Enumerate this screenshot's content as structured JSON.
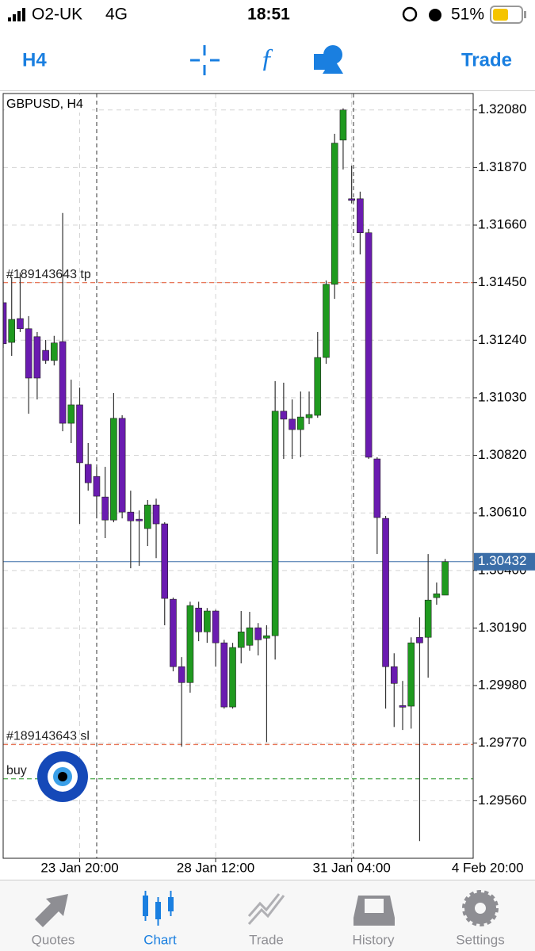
{
  "status_bar": {
    "carrier": "O2-UK",
    "network": "4G",
    "time": "18:51",
    "battery": "51%"
  },
  "toolbar": {
    "timeframe": "H4",
    "action": "Trade"
  },
  "chart_data": {
    "type": "candlestick",
    "title": "GBPUSD, H4",
    "up_color": "#1f9a1f",
    "down_color": "#6a1bb0",
    "open": [
      1.31377,
      1.31232,
      1.31319,
      1.31282,
      1.31253,
      1.31203,
      1.31166,
      1.31235,
      1.30937,
      1.31004,
      1.30787,
      1.30743,
      1.30668,
      1.30584,
      1.30955,
      1.30613,
      1.30587,
      1.30553,
      1.30639,
      1.3057,
      1.30295,
      1.30049,
      1.29991,
      1.30263,
      1.30176,
      1.30252,
      1.30136,
      1.29902,
      1.30119,
      1.30127,
      1.30191,
      1.30153,
      1.30162,
      1.30981,
      1.30952,
      1.30914,
      1.30957,
      1.30966,
      1.31177,
      1.31444,
      1.3197,
      1.31756,
      1.31756,
      1.31632,
      1.30807,
      1.3059,
      1.30049,
      1.29907,
      1.29905,
      1.30156,
      1.30156,
      1.30301,
      1.3031
    ],
    "high": [
      1.31458,
      1.31472,
      1.31487,
      1.31328,
      1.3127,
      1.31241,
      1.31256,
      1.31704,
      1.31096,
      1.31067,
      1.30865,
      1.30778,
      1.30778,
      1.31047,
      1.30966,
      1.30691,
      1.30619,
      1.30657,
      1.30662,
      1.30576,
      1.30301,
      1.30084,
      1.30286,
      1.30286,
      1.30263,
      1.30257,
      1.30147,
      1.30136,
      1.30252,
      1.30249,
      1.30208,
      1.302,
      1.31091,
      1.31085,
      1.31024,
      1.31053,
      1.31053,
      1.3127,
      1.31458,
      1.31993,
      1.32086,
      1.31877,
      1.31782,
      1.31646,
      1.30813,
      1.30599,
      1.30098,
      1.29997,
      1.30156,
      1.30229,
      1.3046,
      1.30356,
      1.30442
    ],
    "low": [
      1.31212,
      1.31183,
      1.3127,
      1.30972,
      1.31024,
      1.31154,
      1.31148,
      1.30908,
      1.30865,
      1.3057,
      1.30691,
      1.3059,
      1.30518,
      1.30576,
      1.3059,
      1.30408,
      1.30417,
      1.30489,
      1.30445,
      1.302,
      1.30032,
      1.29757,
      1.29954,
      1.30142,
      1.30136,
      1.30049,
      1.29896,
      1.29896,
      1.30061,
      1.30107,
      1.3009,
      1.29774,
      1.30075,
      1.30807,
      1.30807,
      1.30813,
      1.30934,
      1.30957,
      1.31154,
      1.31391,
      1.31863,
      1.31739,
      1.31553,
      1.30807,
      1.3046,
      1.29896,
      1.29829,
      1.29818,
      1.29823,
      1.29413,
      1.30009,
      1.30275,
      1.3031
    ],
    "close": [
      1.31227,
      1.31316,
      1.31282,
      1.31102,
      1.31102,
      1.31166,
      1.3123,
      1.30937,
      1.31004,
      1.30793,
      1.3072,
      1.30671,
      1.30584,
      1.30955,
      1.30613,
      1.30581,
      1.30581,
      1.30639,
      1.3057,
      1.30298,
      1.30049,
      1.29991,
      1.30272,
      1.30176,
      1.30252,
      1.30136,
      1.29902,
      1.30119,
      1.30176,
      1.30191,
      1.30147,
      1.30162,
      1.30981,
      1.30952,
      1.30914,
      1.3096,
      1.30969,
      1.31177,
      1.31444,
      1.31959,
      1.3208,
      1.3175,
      1.31632,
      1.30813,
      1.30593,
      1.30049,
      1.29988,
      1.29902,
      1.30136,
      1.30136,
      1.30292,
      1.30315,
      1.30432
    ],
    "xlim": [
      0,
      55.3
    ],
    "xticks": [
      {
        "value": 9,
        "label": "23 Jan 20:00"
      },
      {
        "value": 25,
        "label": "28 Jan 12:00"
      },
      {
        "value": 41,
        "label": "31 Jan 04:00"
      },
      {
        "value": 57,
        "label": "4 Feb 20:00"
      }
    ],
    "ylim": [
      1.2935,
      1.3214
    ],
    "yticks": [
      {
        "value": 1.3208,
        "label": "1.32080"
      },
      {
        "value": 1.3187,
        "label": "1.31870"
      },
      {
        "value": 1.3166,
        "label": "1.31660"
      },
      {
        "value": 1.3145,
        "label": "1.31450"
      },
      {
        "value": 1.3124,
        "label": "1.31240"
      },
      {
        "value": 1.3103,
        "label": "1.31030"
      },
      {
        "value": 1.3082,
        "label": "1.30820"
      },
      {
        "value": 1.3061,
        "label": "1.30610"
      },
      {
        "value": 1.304,
        "label": "1.30400"
      },
      {
        "value": 1.3019,
        "label": "1.30190"
      },
      {
        "value": 1.2998,
        "label": "1.29980"
      },
      {
        "value": 1.2977,
        "label": "1.29770"
      },
      {
        "value": 1.2956,
        "label": "1.29560"
      }
    ],
    "grid": true,
    "levels": [
      {
        "label": "#189143643 tp",
        "value": 1.3145,
        "color": "#e8785a"
      },
      {
        "label": "#189143643 sl",
        "value": 1.29765,
        "color": "#e8785a"
      },
      {
        "label": "buy",
        "value": 1.2964,
        "color": "#5aae5a"
      }
    ],
    "bid": 1.30432,
    "bid_color": "#3b6ea8"
  },
  "tab_bar": {
    "tabs": [
      "Quotes",
      "Chart",
      "Trade",
      "History",
      "Settings"
    ],
    "active": 1
  }
}
